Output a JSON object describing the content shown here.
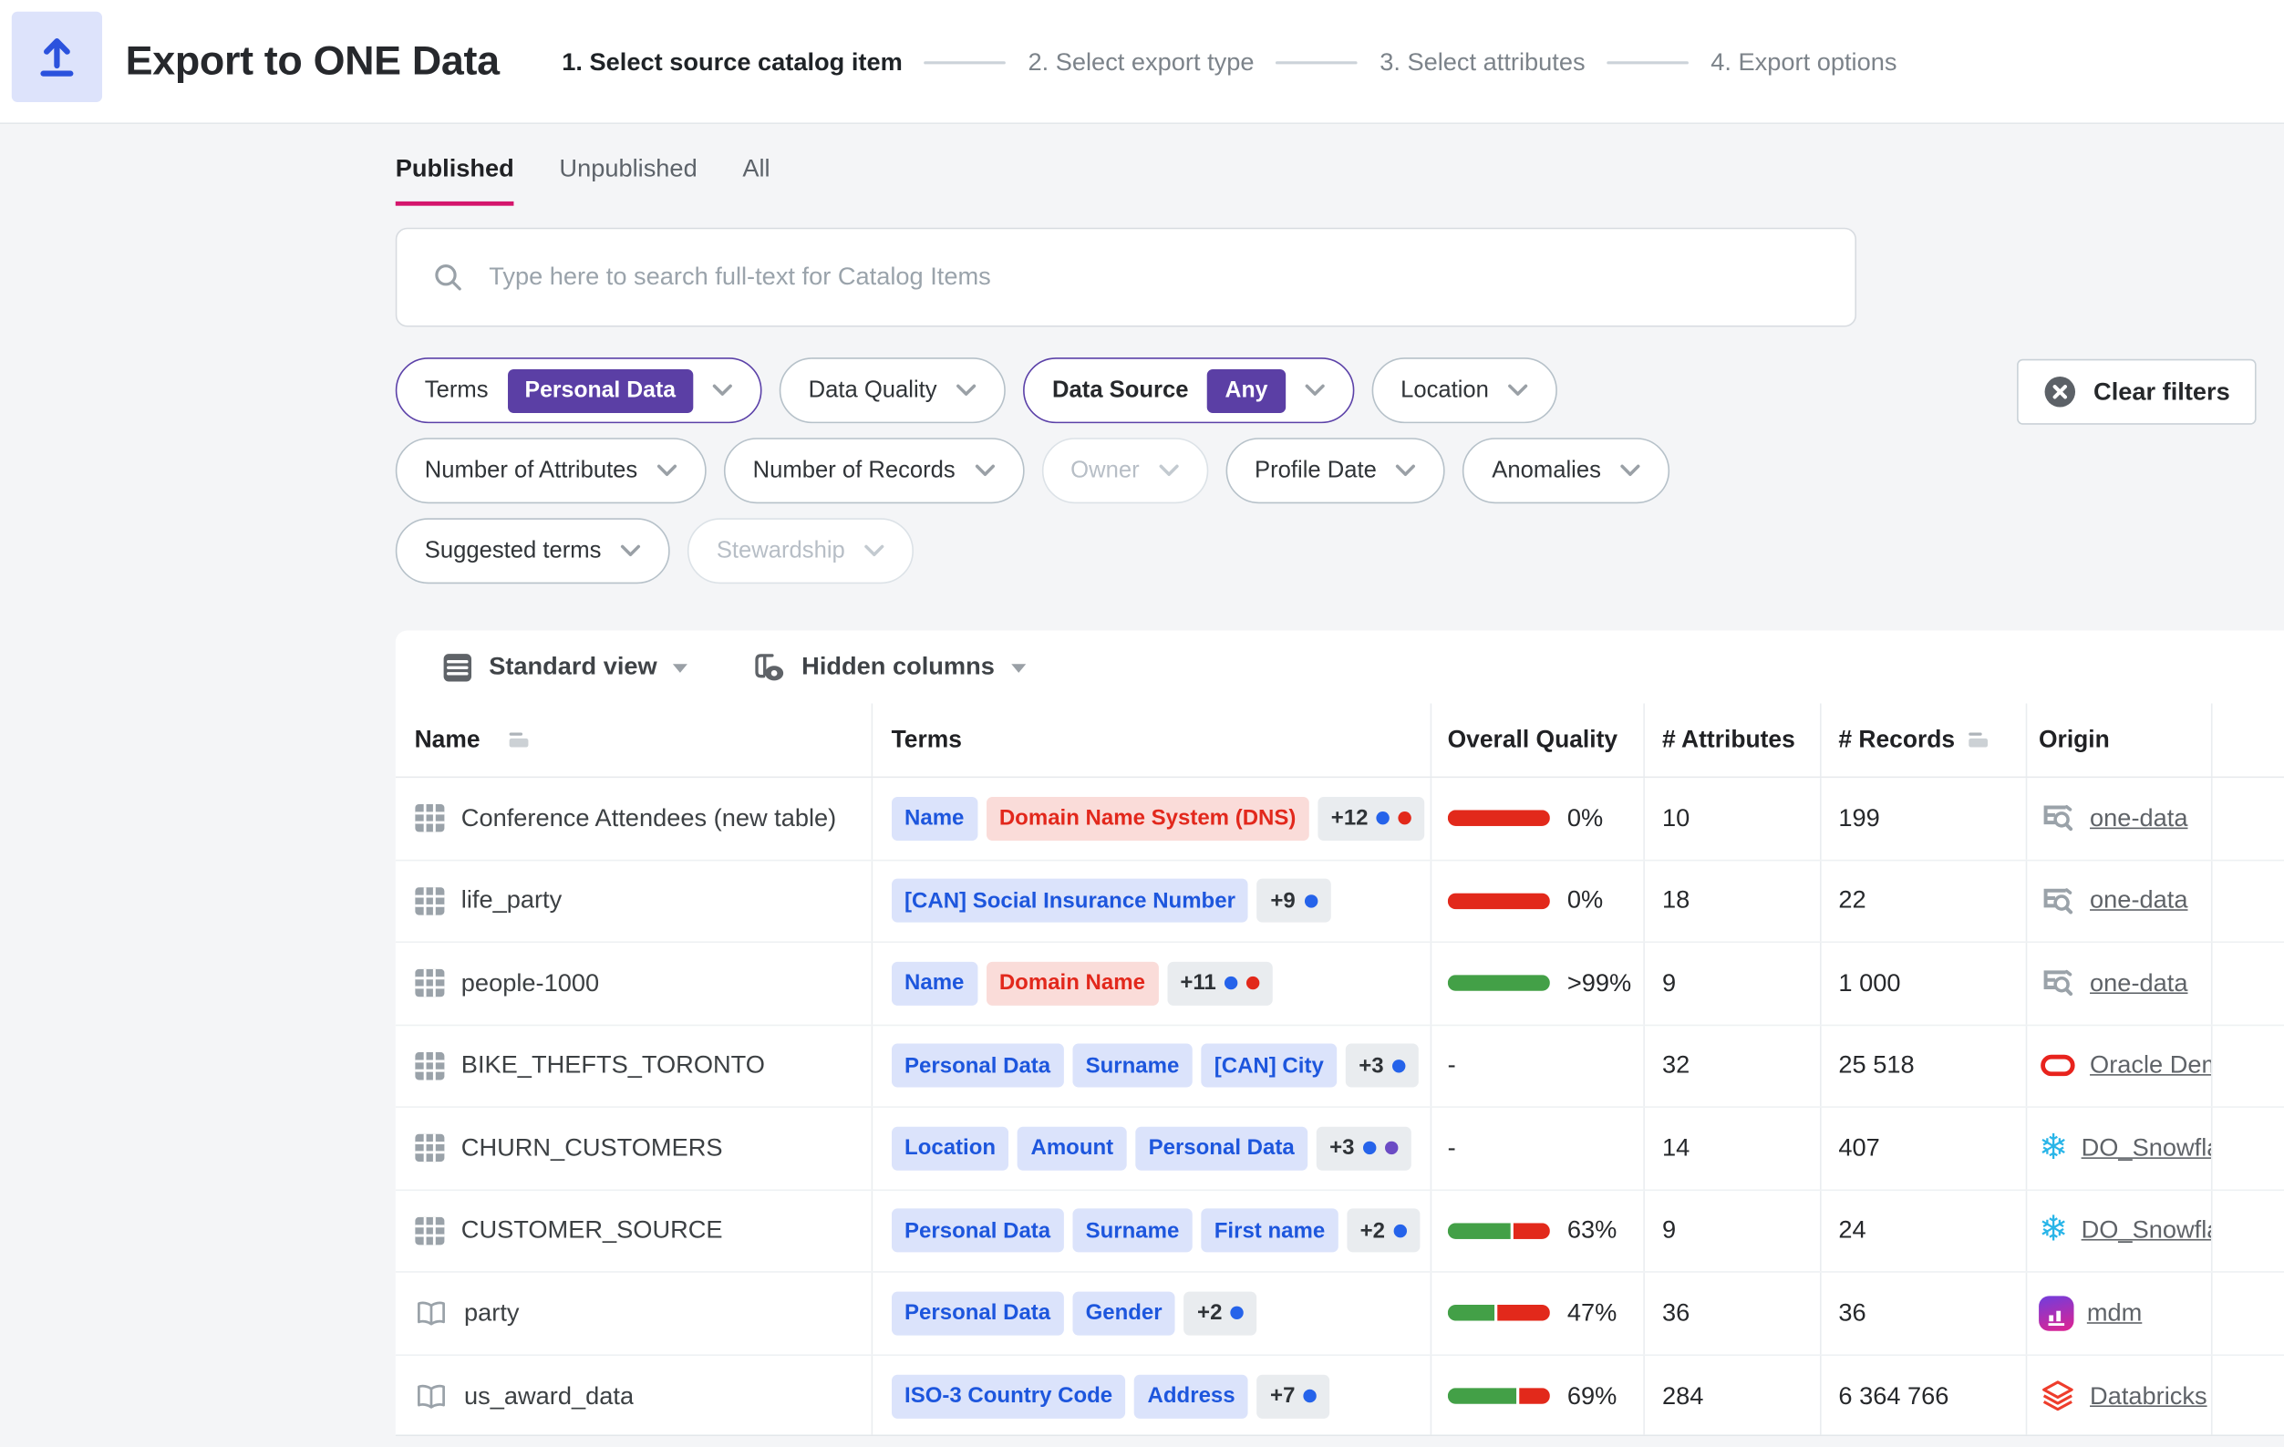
{
  "header": {
    "title": "Export to ONE Data",
    "steps": [
      {
        "label": "1. Select source catalog item",
        "active": true
      },
      {
        "label": "2. Select export type",
        "active": false
      },
      {
        "label": "3. Select attributes",
        "active": false
      },
      {
        "label": "4. Export options",
        "active": false
      }
    ]
  },
  "tabs": [
    {
      "label": "Published",
      "active": true
    },
    {
      "label": "Unpublished",
      "active": false
    },
    {
      "label": "All",
      "active": false
    }
  ],
  "search": {
    "placeholder": "Type here to search full-text for Catalog Items"
  },
  "filters": {
    "terms": {
      "label": "Terms",
      "value": "Personal Data"
    },
    "data_quality": {
      "label": "Data Quality"
    },
    "data_source": {
      "label": "Data Source",
      "value": "Any"
    },
    "location": {
      "label": "Location"
    },
    "number_of_attributes": {
      "label": "Number of Attributes"
    },
    "number_of_records": {
      "label": "Number of Records"
    },
    "owner": {
      "label": "Owner",
      "disabled": true
    },
    "profile_date": {
      "label": "Profile Date"
    },
    "anomalies": {
      "label": "Anomalies"
    },
    "suggested_terms": {
      "label": "Suggested terms"
    },
    "stewardship": {
      "label": "Stewardship",
      "disabled": true
    },
    "clear_label": "Clear filters"
  },
  "toolbar": {
    "view_label": "Standard view",
    "columns_label": "Hidden columns"
  },
  "table": {
    "columns": [
      {
        "label": "Name",
        "sortable": true
      },
      {
        "label": "Terms",
        "sortable": false
      },
      {
        "label": "Overall Quality",
        "sortable": false
      },
      {
        "label": "# Attributes",
        "sortable": false
      },
      {
        "label": "# Records",
        "sortable": true
      },
      {
        "label": "Origin",
        "sortable": false
      }
    ],
    "rows": [
      {
        "icon": "table",
        "name": "Conference Attendees (new table)",
        "terms": [
          {
            "label": "Name",
            "color": "blue"
          },
          {
            "label": "Domain Name System (DNS)",
            "color": "red"
          }
        ],
        "more": {
          "label": "+12",
          "dots": [
            "blue",
            "red"
          ]
        },
        "quality": {
          "label": "0%",
          "segments": [
            [
              "red",
              1
            ]
          ]
        },
        "attributes": "10",
        "records": "199",
        "origin": {
          "icon": "one-data",
          "label": "one-data"
        }
      },
      {
        "icon": "table",
        "name": "life_party",
        "terms": [
          {
            "label": "[CAN] Social Insurance Number",
            "color": "blue"
          }
        ],
        "more": {
          "label": "+9",
          "dots": [
            "blue"
          ]
        },
        "quality": {
          "label": "0%",
          "segments": [
            [
              "red",
              1
            ]
          ]
        },
        "attributes": "18",
        "records": "22",
        "origin": {
          "icon": "one-data",
          "label": "one-data"
        }
      },
      {
        "icon": "table",
        "name": "people-1000",
        "terms": [
          {
            "label": "Name",
            "color": "blue"
          },
          {
            "label": "Domain Name",
            "color": "red"
          }
        ],
        "more": {
          "label": "+11",
          "dots": [
            "blue",
            "red"
          ]
        },
        "quality": {
          "label": ">99%",
          "segments": [
            [
              "green",
              1
            ]
          ]
        },
        "attributes": "9",
        "records": "1 000",
        "origin": {
          "icon": "one-data",
          "label": "one-data"
        }
      },
      {
        "icon": "table",
        "name": "BIKE_THEFTS_TORONTO",
        "terms": [
          {
            "label": "Personal Data",
            "color": "blue"
          },
          {
            "label": "Surname",
            "color": "blue"
          },
          {
            "label": "[CAN] City",
            "color": "blue"
          }
        ],
        "more": {
          "label": "+3",
          "dots": [
            "blue"
          ]
        },
        "quality": {
          "label": "-",
          "segments": []
        },
        "attributes": "32",
        "records": "25 518",
        "origin": {
          "icon": "oracle",
          "label": "Oracle Dem"
        }
      },
      {
        "icon": "table",
        "name": "CHURN_CUSTOMERS",
        "terms": [
          {
            "label": "Location",
            "color": "blue"
          },
          {
            "label": "Amount",
            "color": "blue"
          },
          {
            "label": "Personal Data",
            "color": "blue"
          }
        ],
        "more": {
          "label": "+3",
          "dots": [
            "blue",
            "purple"
          ]
        },
        "quality": {
          "label": "-",
          "segments": []
        },
        "attributes": "14",
        "records": "407",
        "origin": {
          "icon": "snowflake",
          "label": "DO_Snowfla"
        }
      },
      {
        "icon": "table",
        "name": "CUSTOMER_SOURCE",
        "terms": [
          {
            "label": "Personal Data",
            "color": "blue"
          },
          {
            "label": "Surname",
            "color": "blue"
          },
          {
            "label": "First name",
            "color": "blue"
          }
        ],
        "more": {
          "label": "+2",
          "dots": [
            "blue"
          ]
        },
        "quality": {
          "label": "63%",
          "segments": [
            [
              "green",
              0.63
            ],
            [
              "red",
              0.37
            ]
          ]
        },
        "attributes": "9",
        "records": "24",
        "origin": {
          "icon": "snowflake",
          "label": "DO_Snowfla"
        }
      },
      {
        "icon": "book",
        "name": "party",
        "terms": [
          {
            "label": "Personal Data",
            "color": "blue"
          },
          {
            "label": "Gender",
            "color": "blue"
          }
        ],
        "more": {
          "label": "+2",
          "dots": [
            "blue"
          ]
        },
        "quality": {
          "label": "47%",
          "segments": [
            [
              "green",
              0.47
            ],
            [
              "red",
              0.53
            ]
          ]
        },
        "attributes": "36",
        "records": "36",
        "origin": {
          "icon": "mdm",
          "label": "mdm"
        }
      },
      {
        "icon": "book",
        "name": "us_award_data",
        "terms": [
          {
            "label": "ISO-3 Country Code",
            "color": "blue"
          },
          {
            "label": "Address",
            "color": "blue"
          }
        ],
        "more": {
          "label": "+7",
          "dots": [
            "blue"
          ]
        },
        "quality": {
          "label": "69%",
          "segments": [
            [
              "green",
              0.69
            ],
            [
              "red",
              0.31
            ]
          ]
        },
        "attributes": "284",
        "records": "6 364 766",
        "origin": {
          "icon": "databricks",
          "label": "Databricks"
        }
      }
    ]
  },
  "colors": {
    "accent_purple": "#5b3fa5",
    "tab_underline_pink": "#d4156c",
    "quality_green": "#43a047",
    "quality_red": "#e2291b",
    "term_blue_bg": "#dbe3fb",
    "term_blue_text": "#1d56dd",
    "term_red_bg": "#fadcd9",
    "term_red_text": "#e2281c",
    "dot_blue": "#2563ea",
    "dot_red": "#e2291b",
    "dot_purple": "#6b4bc4",
    "snowflake_cyan": "#29b5e8",
    "oracle_red": "#e8231d",
    "databricks_orange": "#ee3d2c"
  }
}
